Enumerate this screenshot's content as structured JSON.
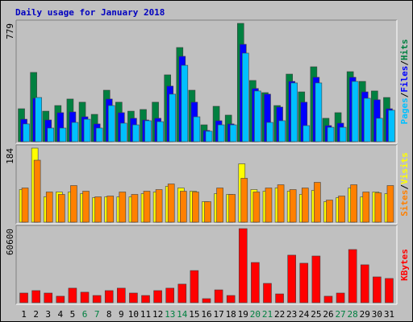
{
  "chart_data": [
    {
      "type": "bar",
      "title": "Daily usage for January 2018",
      "ylim": [
        0,
        779
      ],
      "yticks": [
        779
      ],
      "series": [
        {
          "name": "Hits",
          "color": "#008040",
          "values": [
            217,
            456,
            201,
            238,
            281,
            260,
            180,
            339,
            260,
            201,
            212,
            260,
            440,
            620,
            339,
            111,
            233,
            175,
            779,
            403,
            323,
            238,
            445,
            328,
            493,
            154,
            191,
            461,
            397,
            334,
            291
          ]
        },
        {
          "name": "Files",
          "color": "#0000ff",
          "values": [
            148,
            286,
            143,
            191,
            196,
            164,
            117,
            281,
            191,
            154,
            143,
            154,
            366,
            562,
            260,
            74,
            138,
            117,
            641,
            350,
            313,
            228,
            397,
            260,
            424,
            106,
            122,
            424,
            328,
            276,
            217
          ]
        },
        {
          "name": "Pages",
          "color": "#00c0ff",
          "values": [
            117,
            291,
            90,
            90,
            127,
            148,
            90,
            238,
            122,
            111,
            138,
            132,
            313,
            503,
            164,
            69,
            111,
            111,
            583,
            334,
            127,
            138,
            387,
            106,
            387,
            95,
            95,
            397,
            286,
            154,
            207
          ]
        }
      ]
    },
    {
      "type": "bar",
      "ylim": [
        0,
        184
      ],
      "yticks": [
        184
      ],
      "series": [
        {
          "name": "Visits",
          "color": "#ffff00",
          "values": [
            81,
            184,
            63,
            75,
            75,
            71,
            61,
            63,
            63,
            63,
            71,
            75,
            89,
            85,
            77,
            51,
            71,
            69,
            145,
            81,
            77,
            85,
            77,
            69,
            79,
            51,
            61,
            85,
            63,
            75,
            71
          ]
        },
        {
          "name": "Sites",
          "color": "#ff8000",
          "values": [
            85,
            154,
            75,
            69,
            91,
            77,
            63,
            65,
            75,
            69,
            77,
            81,
            95,
            77,
            75,
            51,
            85,
            69,
            109,
            75,
            85,
            93,
            81,
            85,
            99,
            55,
            65,
            93,
            75,
            73,
            91
          ]
        }
      ]
    },
    {
      "type": "bar",
      "ylim": [
        0,
        60600
      ],
      "yticks": [
        60600
      ],
      "categories": [
        "1",
        "2",
        "3",
        "4",
        "5",
        "6",
        "7",
        "8",
        "9",
        "10",
        "11",
        "12",
        "13",
        "14",
        "15",
        "16",
        "17",
        "18",
        "19",
        "20",
        "21",
        "22",
        "23",
        "24",
        "25",
        "26",
        "27",
        "28",
        "29",
        "30",
        "31"
      ],
      "category_colors": [
        "#000000",
        "#000000",
        "#000000",
        "#000000",
        "#000000",
        "#008040",
        "#008040",
        "#000000",
        "#000000",
        "#000000",
        "#000000",
        "#000000",
        "#008040",
        "#008040",
        "#000000",
        "#000000",
        "#000000",
        "#000000",
        "#000000",
        "#008040",
        "#008040",
        "#000000",
        "#000000",
        "#000000",
        "#000000",
        "#000000",
        "#008040",
        "#008040",
        "#000000",
        "#000000",
        "#000000"
      ],
      "series": [
        {
          "name": "KBytes",
          "color": "#ff0000",
          "values": [
            7900,
            9900,
            7900,
            5300,
            11900,
            8600,
            5900,
            9900,
            11900,
            7900,
            5900,
            9900,
            11900,
            15200,
            26300,
            3300,
            10500,
            5900,
            60600,
            32900,
            15800,
            7200,
            38900,
            32300,
            38200,
            5300,
            7900,
            43500,
            31000,
            21100,
            19800
          ]
        }
      ]
    }
  ]
}
